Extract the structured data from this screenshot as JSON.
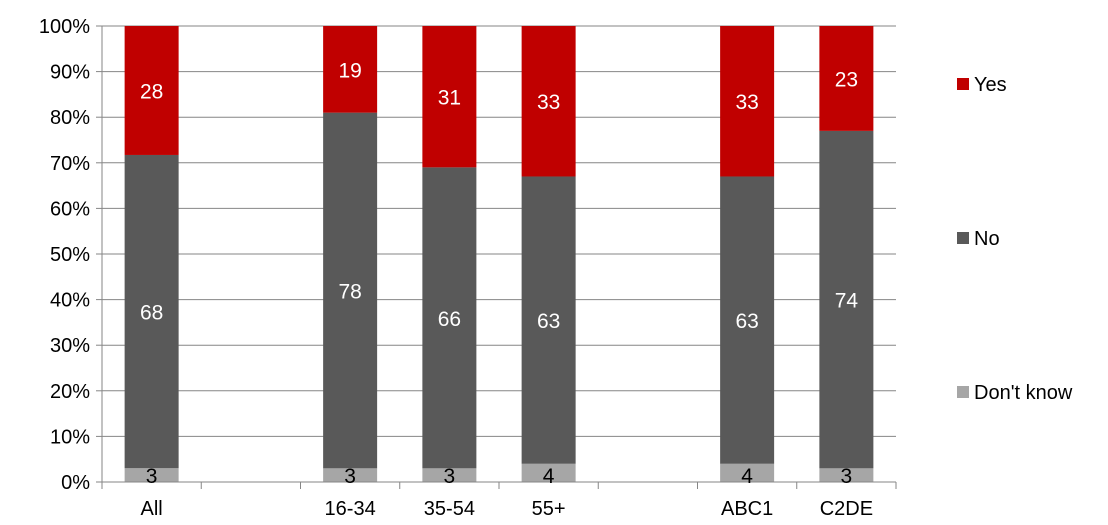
{
  "chart_data": {
    "type": "bar",
    "stacked": true,
    "percent_stacked": true,
    "categories": [
      "All",
      "",
      "16-34",
      "35-54",
      "55+",
      "",
      "ABC1",
      "C2DE"
    ],
    "series": [
      {
        "name": "Don't know",
        "values": [
          3,
          null,
          3,
          3,
          4,
          null,
          4,
          3
        ],
        "color": "#a6a6a6"
      },
      {
        "name": "No",
        "values": [
          68,
          null,
          78,
          66,
          63,
          null,
          63,
          74
        ],
        "color": "#595959"
      },
      {
        "name": "Yes",
        "values": [
          28,
          null,
          19,
          31,
          33,
          null,
          33,
          23
        ],
        "color": "#c00000"
      }
    ],
    "y_ticks": [
      "0%",
      "10%",
      "20%",
      "30%",
      "40%",
      "50%",
      "60%",
      "70%",
      "80%",
      "90%",
      "100%"
    ],
    "ylim": [
      0,
      100
    ],
    "title": "",
    "xlabel": "",
    "ylabel": "",
    "grid": "horizontal",
    "legend_position": "right",
    "legend_order": [
      "Yes",
      "No",
      "Don't know"
    ],
    "colors": {
      "axis": "#868686",
      "grid": "#868686",
      "label_light": "#ffffff",
      "label_dark": "#000000"
    }
  }
}
